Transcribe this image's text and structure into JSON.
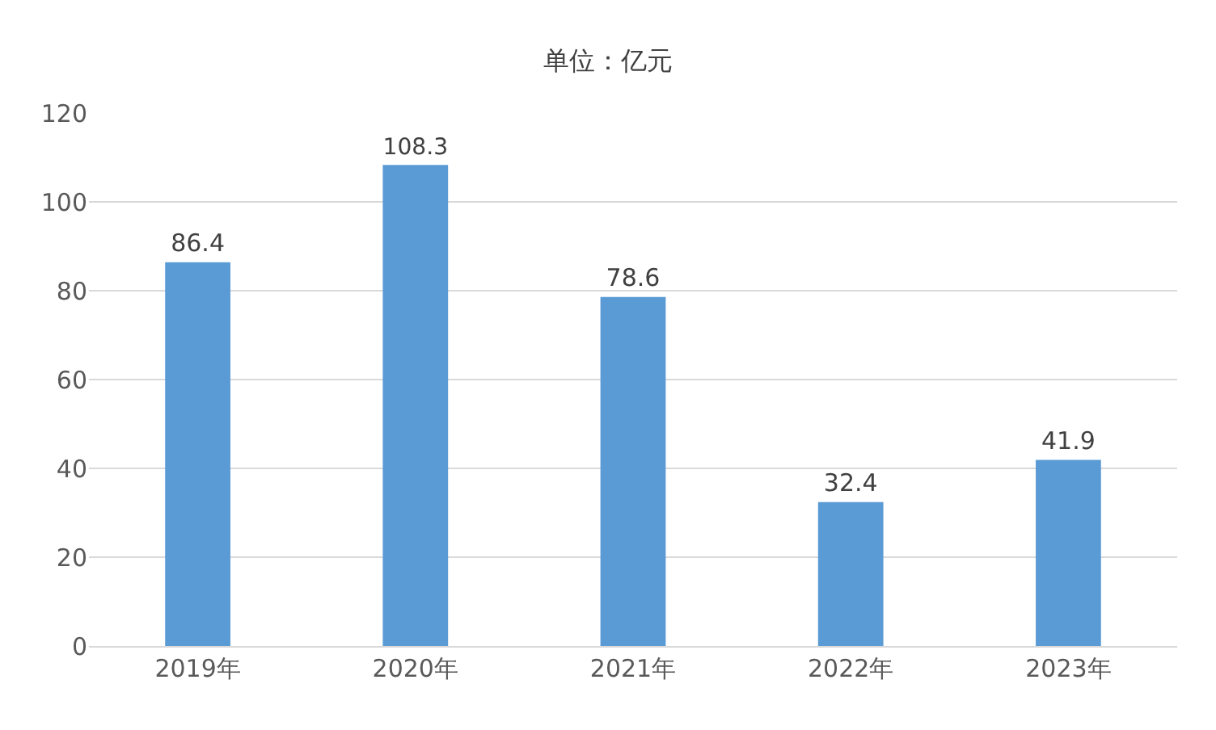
{
  "chart_data": {
    "type": "bar",
    "title": "单位：亿元",
    "categories": [
      "2019年",
      "2020年",
      "2021年",
      "2022年",
      "2023年"
    ],
    "values": [
      86.4,
      108.3,
      78.6,
      32.4,
      41.9
    ],
    "color": "#5b9bd5",
    "ylim": [
      0,
      120
    ],
    "yticks": [
      0,
      20,
      40,
      60,
      80,
      100,
      120
    ],
    "grid": "y",
    "data_labels": true,
    "legend": false
  }
}
